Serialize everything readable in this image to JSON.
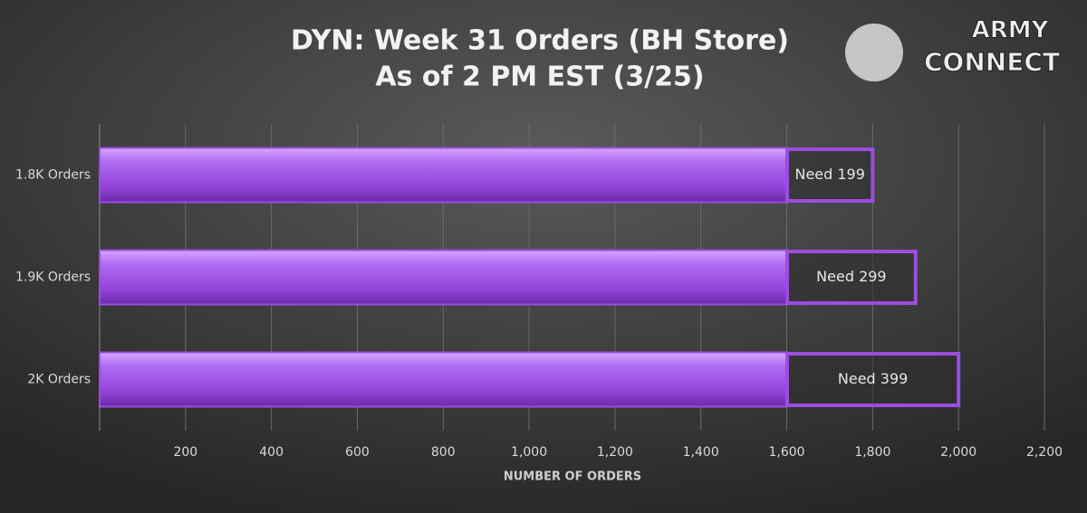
{
  "chart_data": {
    "type": "stacked-barh",
    "title": "DYN: Week 31 Orders (BH Store)",
    "subtitle": "As of 2 PM EST (3/25)",
    "xlabel": "NUMBER OF ORDERS",
    "categories": [
      "1.8K Orders",
      "1.9K Orders",
      "2K Orders"
    ],
    "series": [
      {
        "color": "#9b4de0",
        "values": [
          1601,
          1601,
          1601
        ]
      },
      {
        "color": "#9b4de0",
        "values": [
          199,
          299,
          399
        ],
        "value_labels": [
          "Need 199",
          "Need 299",
          "Need 399"
        ]
      }
    ],
    "xlim": [
      0,
      2200
    ],
    "xticks": [
      200,
      400,
      600,
      800,
      {
        "value": 1000,
        "label": "1,000"
      },
      {
        "value": 1200,
        "label": "1,200"
      },
      {
        "value": 1400,
        "label": "1,400"
      },
      {
        "value": 1600,
        "label": "1,600"
      },
      {
        "value": 1800,
        "label": "1,800"
      },
      {
        "value": 2000,
        "label": "2,000"
      },
      {
        "value": 2200,
        "label": "2,200"
      }
    ],
    "grid": true
  },
  "logo": {
    "line1": "ARMY",
    "line2": "CONNECT"
  }
}
